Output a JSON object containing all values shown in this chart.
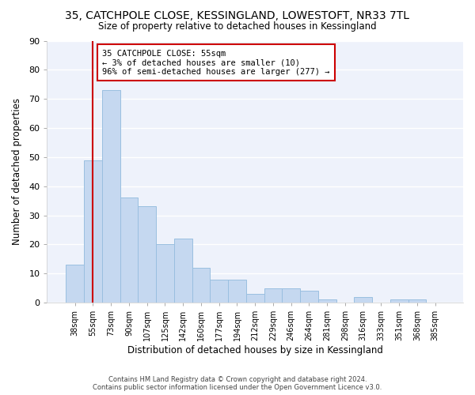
{
  "title_line1": "35, CATCHPOLE CLOSE, KESSINGLAND, LOWESTOFT, NR33 7TL",
  "title_line2": "Size of property relative to detached houses in Kessingland",
  "xlabel": "Distribution of detached houses by size in Kessingland",
  "ylabel": "Number of detached properties",
  "categories": [
    "38sqm",
    "55sqm",
    "73sqm",
    "90sqm",
    "107sqm",
    "125sqm",
    "142sqm",
    "160sqm",
    "177sqm",
    "194sqm",
    "212sqm",
    "229sqm",
    "246sqm",
    "264sqm",
    "281sqm",
    "298sqm",
    "316sqm",
    "333sqm",
    "351sqm",
    "368sqm",
    "385sqm"
  ],
  "values": [
    13,
    49,
    73,
    36,
    33,
    20,
    22,
    12,
    8,
    8,
    3,
    5,
    5,
    4,
    1,
    0,
    2,
    0,
    1,
    1,
    0
  ],
  "bar_color": "#c5d8f0",
  "bar_edgecolor": "#9abfe0",
  "background_color": "#eef2fb",
  "grid_color": "#ffffff",
  "vline_x": 1,
  "vline_color": "#cc0000",
  "annotation_text": "35 CATCHPOLE CLOSE: 55sqm\n← 3% of detached houses are smaller (10)\n96% of semi-detached houses are larger (277) →",
  "annotation_box_color": "#cc0000",
  "ylim": [
    0,
    90
  ],
  "yticks": [
    0,
    10,
    20,
    30,
    40,
    50,
    60,
    70,
    80,
    90
  ],
  "footer_line1": "Contains HM Land Registry data © Crown copyright and database right 2024.",
  "footer_line2": "Contains public sector information licensed under the Open Government Licence v3.0."
}
